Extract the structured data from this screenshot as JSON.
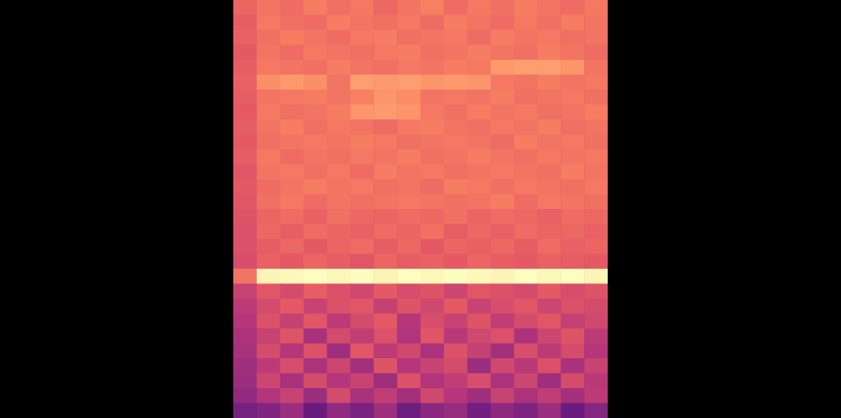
{
  "chart_data": {
    "type": "heatmap",
    "tick_labels": false,
    "zlim": [
      0,
      100
    ],
    "cells": [
      [
        66,
        70,
        68,
        72,
        69,
        71,
        67,
        70,
        73,
        68,
        71,
        69,
        72,
        70,
        68,
        71
      ],
      [
        64,
        71,
        69,
        68,
        72,
        70,
        69,
        71,
        68,
        72,
        70,
        68,
        71,
        69,
        72,
        70
      ],
      [
        65,
        69,
        72,
        70,
        68,
        71,
        72,
        69,
        70,
        71,
        68,
        72,
        70,
        71,
        69,
        70
      ],
      [
        63,
        70,
        68,
        71,
        70,
        69,
        71,
        72,
        69,
        70,
        72,
        70,
        69,
        72,
        70,
        68
      ],
      [
        64,
        71,
        70,
        69,
        72,
        70,
        69,
        71,
        70,
        72,
        71,
        79,
        80,
        80,
        78,
        70
      ],
      [
        65,
        77,
        79,
        77,
        70,
        80,
        79,
        80,
        78,
        79,
        78,
        71,
        70,
        72,
        70,
        71
      ],
      [
        64,
        70,
        71,
        72,
        70,
        73,
        78,
        76,
        70,
        71,
        70,
        72,
        69,
        70,
        71,
        69
      ],
      [
        63,
        71,
        69,
        70,
        72,
        78,
        79,
        78,
        71,
        69,
        72,
        70,
        71,
        69,
        70,
        72
      ],
      [
        64,
        70,
        72,
        69,
        71,
        70,
        68,
        71,
        72,
        70,
        69,
        71,
        70,
        72,
        69,
        70
      ],
      [
        63,
        69,
        70,
        71,
        70,
        72,
        71,
        69,
        70,
        71,
        70,
        68,
        72,
        70,
        71,
        69
      ],
      [
        64,
        71,
        68,
        70,
        69,
        71,
        70,
        72,
        69,
        70,
        72,
        70,
        69,
        71,
        70,
        71
      ],
      [
        62,
        70,
        71,
        69,
        71,
        68,
        72,
        70,
        71,
        69,
        70,
        71,
        70,
        69,
        72,
        70
      ],
      [
        63,
        68,
        70,
        72,
        70,
        71,
        69,
        70,
        68,
        72,
        71,
        69,
        71,
        70,
        69,
        71
      ],
      [
        62,
        69,
        71,
        68,
        70,
        69,
        70,
        71,
        70,
        69,
        70,
        72,
        68,
        71,
        70,
        69
      ],
      [
        61,
        66,
        68,
        65,
        69,
        67,
        66,
        68,
        67,
        69,
        66,
        68,
        67,
        65,
        68,
        67
      ],
      [
        60,
        67,
        64,
        68,
        66,
        65,
        68,
        66,
        69,
        64,
        67,
        65,
        68,
        66,
        67,
        65
      ],
      [
        60,
        64,
        67,
        63,
        66,
        68,
        64,
        67,
        63,
        66,
        65,
        67,
        64,
        68,
        65,
        66
      ],
      [
        59,
        65,
        63,
        66,
        64,
        62,
        66,
        64,
        65,
        63,
        66,
        64,
        63,
        65,
        64,
        63
      ],
      [
        70,
        98,
        99,
        100,
        99,
        100,
        98,
        100,
        99,
        100,
        99,
        98,
        100,
        99,
        100,
        98
      ],
      [
        55,
        62,
        58,
        64,
        60,
        57,
        63,
        59,
        61,
        56,
        62,
        60,
        58,
        63,
        59,
        61
      ],
      [
        52,
        58,
        63,
        55,
        60,
        62,
        54,
        61,
        57,
        63,
        55,
        59,
        62,
        56,
        60,
        58
      ],
      [
        50,
        60,
        54,
        62,
        52,
        58,
        63,
        50,
        59,
        55,
        61,
        53,
        58,
        62,
        54,
        57
      ],
      [
        48,
        55,
        61,
        47,
        58,
        53,
        60,
        49,
        62,
        51,
        57,
        60,
        48,
        56,
        61,
        52
      ],
      [
        47,
        58,
        50,
        60,
        45,
        62,
        52,
        57,
        48,
        60,
        54,
        46,
        59,
        52,
        58,
        50
      ],
      [
        45,
        52,
        59,
        48,
        56,
        46,
        61,
        50,
        55,
        58,
        44,
        57,
        51,
        60,
        47,
        55
      ],
      [
        44,
        56,
        47,
        58,
        50,
        55,
        45,
        60,
        49,
        53,
        59,
        48,
        56,
        45,
        58,
        51
      ],
      [
        42,
        49,
        55,
        44,
        58,
        47,
        53,
        46,
        57,
        50,
        45,
        55,
        48,
        53,
        46,
        52
      ],
      [
        35,
        38,
        44,
        32,
        42,
        36,
        45,
        33,
        40,
        43,
        34,
        41,
        37,
        44,
        32,
        39
      ]
    ]
  }
}
